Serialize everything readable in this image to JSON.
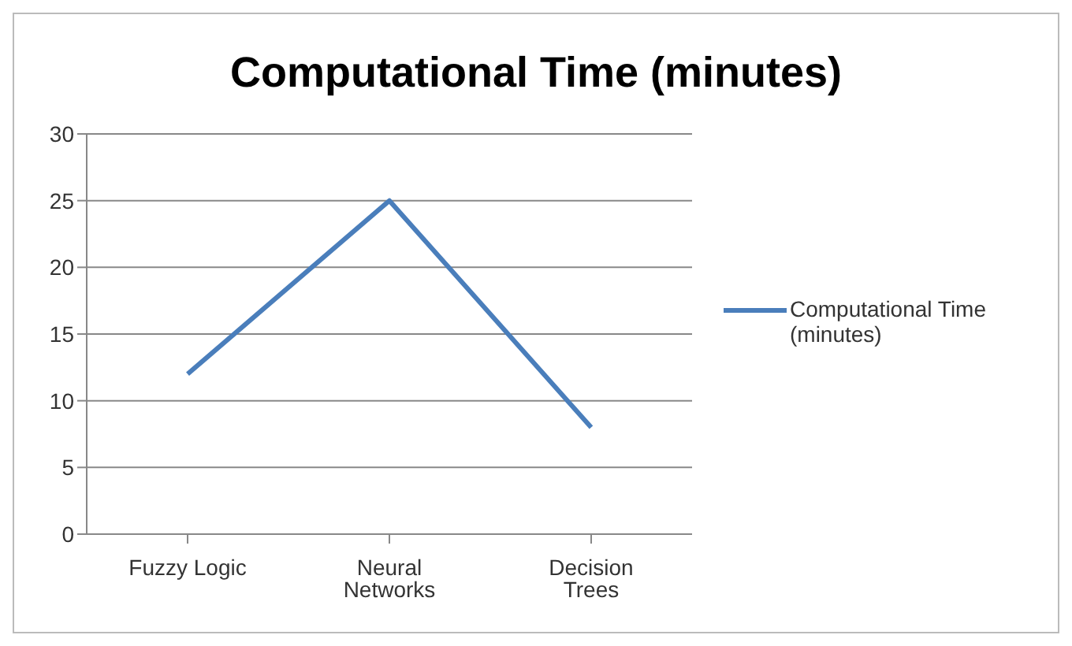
{
  "chart_data": {
    "type": "line",
    "title": "Computational Time (minutes)",
    "categories": [
      "Fuzzy Logic",
      "Neural Networks",
      "Decision Trees"
    ],
    "series": [
      {
        "name": "Computational Time (minutes)",
        "color": "#4a7ebb",
        "values": [
          12,
          25,
          8
        ]
      }
    ],
    "ylim": [
      0,
      30
    ],
    "yticks": [
      0,
      5,
      10,
      15,
      20,
      25,
      30
    ],
    "grid": "y",
    "legend": "right",
    "marker": "none",
    "line_style": "solid"
  }
}
